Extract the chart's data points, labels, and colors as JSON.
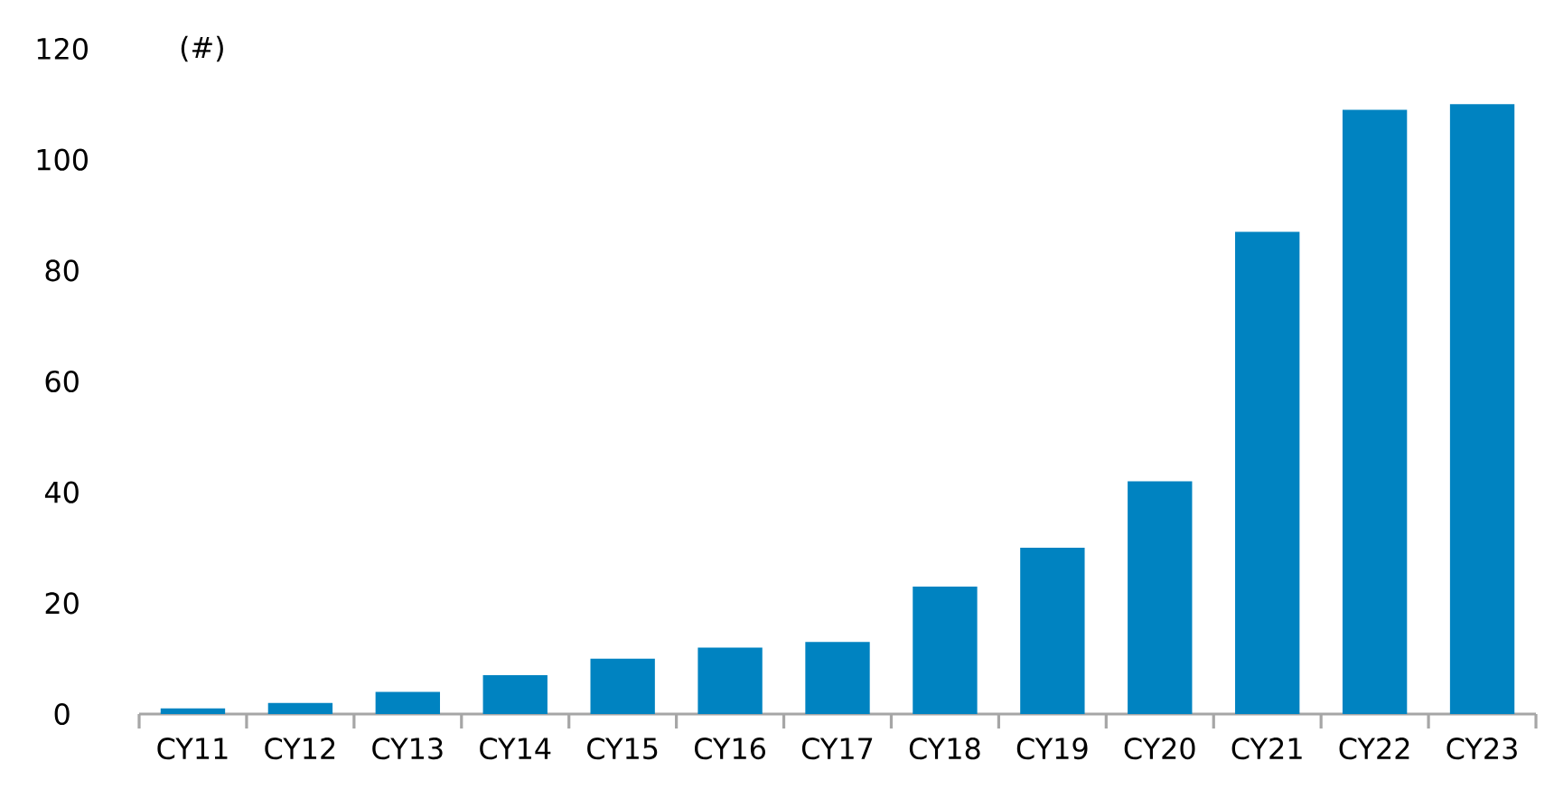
{
  "chart_data": {
    "type": "bar",
    "ylabel": "(#)",
    "categories": [
      "CY11",
      "CY12",
      "CY13",
      "CY14",
      "CY15",
      "CY16",
      "CY17",
      "CY18",
      "CY19",
      "CY20",
      "CY21",
      "CY22",
      "CY23"
    ],
    "values": [
      1,
      2,
      4,
      7,
      10,
      12,
      13,
      23,
      30,
      42,
      87,
      109,
      110
    ],
    "color": "#0083c1",
    "ylim": [
      0,
      120
    ],
    "yticks": [
      0,
      20,
      40,
      60,
      80,
      100,
      120
    ],
    "grid": false
  }
}
